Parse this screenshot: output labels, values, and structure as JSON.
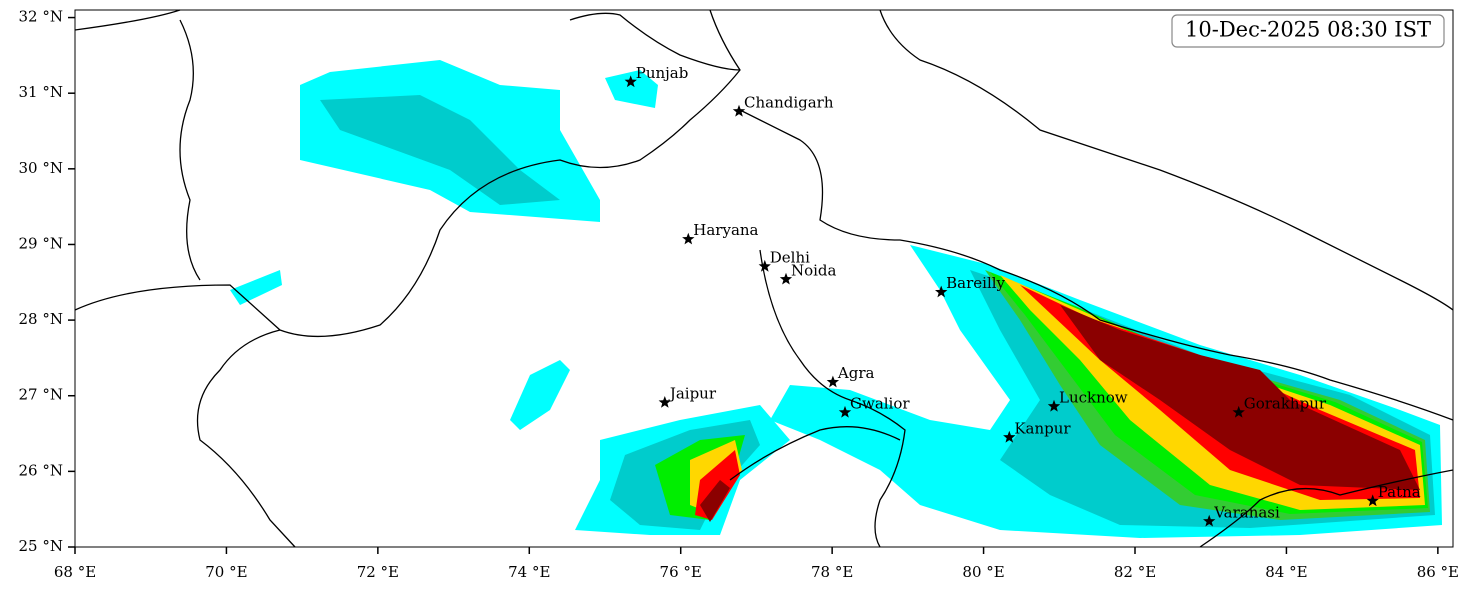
{
  "map": {
    "title": "10-Dec-2025 08:30 IST",
    "xlim": [
      68,
      86.2
    ],
    "ylim": [
      25,
      32.1
    ],
    "xticks": [
      {
        "value": 68,
        "label": "68 °E"
      },
      {
        "value": 70,
        "label": "70 °E"
      },
      {
        "value": 72,
        "label": "72 °E"
      },
      {
        "value": 74,
        "label": "74 °E"
      },
      {
        "value": 76,
        "label": "76 °E"
      },
      {
        "value": 78,
        "label": "78 °E"
      },
      {
        "value": 80,
        "label": "80 °E"
      },
      {
        "value": 82,
        "label": "82 °E"
      },
      {
        "value": 84,
        "label": "84 °E"
      },
      {
        "value": 86,
        "label": "86 °E"
      }
    ],
    "yticks": [
      {
        "value": 25,
        "label": "25 °N"
      },
      {
        "value": 26,
        "label": "26 °N"
      },
      {
        "value": 27,
        "label": "27 °N"
      },
      {
        "value": 28,
        "label": "28 °N"
      },
      {
        "value": 29,
        "label": "29 °N"
      },
      {
        "value": 30,
        "label": "30 °N"
      },
      {
        "value": 31,
        "label": "31 °N"
      },
      {
        "value": 32,
        "label": "32 °N"
      }
    ],
    "cities": [
      {
        "name": "Punjab",
        "lon": 75.34,
        "lat": 31.15
      },
      {
        "name": "Chandigarh",
        "lon": 76.77,
        "lat": 30.76
      },
      {
        "name": "Haryana",
        "lon": 76.1,
        "lat": 29.07
      },
      {
        "name": "Delhi",
        "lon": 77.11,
        "lat": 28.71
      },
      {
        "name": "Noida",
        "lon": 77.39,
        "lat": 28.54
      },
      {
        "name": "Bareilly",
        "lon": 79.44,
        "lat": 28.37
      },
      {
        "name": "Agra",
        "lon": 78.01,
        "lat": 27.18
      },
      {
        "name": "Jaipur",
        "lon": 75.79,
        "lat": 26.91
      },
      {
        "name": "Gwalior",
        "lon": 78.17,
        "lat": 26.78
      },
      {
        "name": "Lucknow",
        "lon": 80.93,
        "lat": 26.86
      },
      {
        "name": "Kanpur",
        "lon": 80.34,
        "lat": 26.45
      },
      {
        "name": "Gorakhpur",
        "lon": 83.37,
        "lat": 26.78
      },
      {
        "name": "Patna",
        "lon": 85.14,
        "lat": 25.61
      },
      {
        "name": "Varanasi",
        "lon": 82.98,
        "lat": 25.34
      }
    ]
  }
}
